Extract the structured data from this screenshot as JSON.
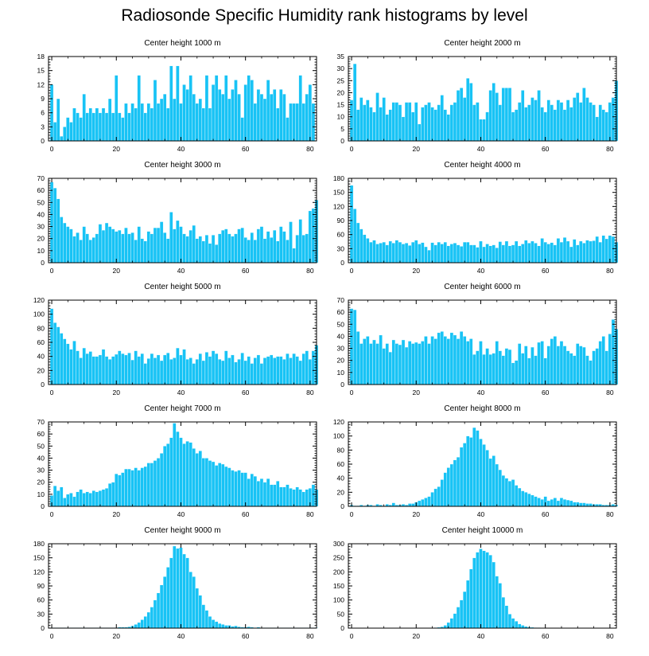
{
  "title": "Radiosonde Specific Humidity rank histograms by level",
  "colors": {
    "bar": "#18c3f5",
    "bar_edge": "#ffffff",
    "axis": "#000000"
  },
  "chart_data": [
    {
      "type": "bar",
      "title": "Center height 1000 m",
      "ylim": [
        0,
        18
      ],
      "yticks": [
        0,
        3,
        6,
        9,
        12,
        15,
        18
      ],
      "xlim": [
        -1,
        82
      ],
      "xticks": [
        0,
        20,
        40,
        60,
        80
      ],
      "values": [
        12,
        4,
        9,
        1,
        3,
        5,
        4,
        7,
        6,
        5,
        10,
        6,
        7,
        6,
        7,
        6,
        7,
        6,
        9,
        6,
        14,
        6,
        5,
        8,
        6,
        8,
        7,
        14,
        8,
        6,
        8,
        7,
        13,
        8,
        9,
        10,
        7,
        16,
        9,
        16,
        8,
        12,
        11,
        14,
        10,
        8,
        9,
        7,
        14,
        7,
        12,
        14,
        11,
        10,
        14,
        9,
        11,
        13,
        10,
        5,
        12,
        14,
        13,
        8,
        11,
        10,
        9,
        13,
        10,
        11,
        7,
        11,
        10,
        5,
        8,
        8,
        8,
        14,
        8,
        10,
        12,
        8
      ]
    },
    {
      "type": "bar",
      "title": "Center height 2000 m",
      "ylim": [
        0,
        35
      ],
      "yticks": [
        0,
        5,
        10,
        15,
        20,
        25,
        30,
        35
      ],
      "xlim": [
        -1,
        82
      ],
      "xticks": [
        0,
        20,
        40,
        60,
        80
      ],
      "values": [
        17,
        32,
        13,
        18,
        15,
        17,
        14,
        12,
        20,
        14,
        18,
        11,
        13,
        16,
        16,
        15,
        10,
        16,
        16,
        12,
        16,
        7,
        14,
        15,
        16,
        14,
        13,
        15,
        19,
        13,
        11,
        15,
        16,
        21,
        22,
        18,
        26,
        24,
        15,
        16,
        9,
        9,
        12,
        21,
        24,
        20,
        15,
        22,
        22,
        22,
        12,
        13,
        16,
        21,
        14,
        15,
        18,
        17,
        21,
        14,
        12,
        17,
        15,
        13,
        17,
        16,
        13,
        17,
        14,
        18,
        20,
        16,
        22,
        18,
        16,
        15,
        10,
        15,
        13,
        12,
        16,
        18,
        25
      ]
    },
    {
      "type": "bar",
      "title": "Center height 3000 m",
      "ylim": [
        0,
        70
      ],
      "yticks": [
        0,
        10,
        20,
        30,
        40,
        50,
        60,
        70
      ],
      "xlim": [
        -1,
        82
      ],
      "xticks": [
        0,
        20,
        40,
        60,
        80
      ],
      "values": [
        67,
        62,
        53,
        38,
        33,
        30,
        28,
        22,
        25,
        19,
        30,
        24,
        19,
        21,
        24,
        32,
        27,
        33,
        30,
        28,
        26,
        27,
        24,
        29,
        24,
        25,
        19,
        30,
        20,
        18,
        26,
        24,
        29,
        29,
        34,
        25,
        20,
        42,
        28,
        35,
        30,
        24,
        22,
        27,
        31,
        20,
        22,
        18,
        23,
        16,
        23,
        15,
        24,
        27,
        28,
        24,
        22,
        24,
        28,
        29,
        21,
        19,
        25,
        19,
        28,
        30,
        20,
        26,
        21,
        27,
        18,
        30,
        26,
        19,
        34,
        12,
        23,
        36,
        23,
        24,
        43,
        45,
        52
      ]
    },
    {
      "type": "bar",
      "title": "Center height 4000 m",
      "ylim": [
        0,
        180
      ],
      "yticks": [
        0,
        30,
        60,
        90,
        120,
        150,
        180
      ],
      "xlim": [
        -1,
        82
      ],
      "xticks": [
        0,
        20,
        40,
        60,
        80
      ],
      "values": [
        165,
        115,
        85,
        72,
        60,
        52,
        44,
        48,
        40,
        42,
        44,
        38,
        46,
        42,
        48,
        44,
        40,
        42,
        37,
        44,
        48,
        40,
        43,
        34,
        27,
        43,
        38,
        44,
        40,
        44,
        36,
        40,
        42,
        38,
        35,
        44,
        44,
        38,
        38,
        33,
        46,
        34,
        40,
        36,
        38,
        32,
        45,
        38,
        46,
        36,
        38,
        46,
        36,
        40,
        48,
        42,
        46,
        42,
        36,
        52,
        44,
        40,
        43,
        38,
        52,
        44,
        54,
        46,
        34,
        50,
        38,
        46,
        42,
        48,
        46,
        47,
        56,
        44,
        58,
        51,
        58,
        56,
        44
      ]
    },
    {
      "type": "bar",
      "title": "Center height 5000 m",
      "ylim": [
        0,
        120
      ],
      "yticks": [
        0,
        20,
        40,
        60,
        80,
        100,
        120
      ],
      "xlim": [
        -1,
        82
      ],
      "xticks": [
        0,
        20,
        40,
        60,
        80
      ],
      "values": [
        108,
        88,
        82,
        73,
        65,
        58,
        50,
        62,
        48,
        38,
        52,
        44,
        47,
        40,
        40,
        42,
        50,
        40,
        36,
        40,
        43,
        48,
        44,
        42,
        45,
        35,
        48,
        40,
        44,
        30,
        37,
        44,
        38,
        42,
        34,
        42,
        45,
        36,
        38,
        52,
        42,
        50,
        36,
        38,
        30,
        36,
        44,
        34,
        46,
        40,
        48,
        44,
        36,
        34,
        48,
        38,
        42,
        32,
        36,
        45,
        34,
        40,
        30,
        38,
        42,
        30,
        38,
        40,
        42,
        38,
        40,
        40,
        36,
        44,
        38,
        44,
        40,
        34,
        44,
        48,
        36,
        48,
        56
      ]
    },
    {
      "type": "bar",
      "title": "Center height 6000 m",
      "ylim": [
        0,
        70
      ],
      "yticks": [
        0,
        10,
        20,
        30,
        40,
        50,
        60,
        70
      ],
      "xlim": [
        -1,
        82
      ],
      "xticks": [
        0,
        20,
        40,
        60,
        80
      ],
      "values": [
        63,
        62,
        44,
        34,
        38,
        40,
        34,
        37,
        34,
        41,
        30,
        34,
        27,
        37,
        34,
        33,
        37,
        31,
        36,
        34,
        35,
        34,
        36,
        40,
        34,
        40,
        38,
        43,
        44,
        40,
        38,
        43,
        41,
        38,
        44,
        40,
        36,
        38,
        25,
        28,
        36,
        25,
        30,
        25,
        26,
        36,
        28,
        24,
        30,
        29,
        18,
        20,
        34,
        26,
        32,
        22,
        31,
        24,
        35,
        36,
        22,
        32,
        38,
        40,
        32,
        36,
        32,
        28,
        26,
        24,
        34,
        32,
        31,
        24,
        20,
        28,
        30,
        36,
        40,
        28,
        42,
        54,
        46
      ]
    },
    {
      "type": "bar",
      "title": "Center height 7000 m",
      "ylim": [
        0,
        70
      ],
      "yticks": [
        0,
        10,
        20,
        30,
        40,
        50,
        60,
        70
      ],
      "xlim": [
        -1,
        82
      ],
      "xticks": [
        0,
        20,
        40,
        60,
        80
      ],
      "values": [
        9,
        17,
        13,
        16,
        7,
        10,
        11,
        8,
        12,
        14,
        11,
        12,
        11,
        13,
        12,
        13,
        14,
        15,
        19,
        20,
        27,
        26,
        28,
        31,
        31,
        30,
        32,
        30,
        32,
        33,
        36,
        36,
        38,
        40,
        44,
        50,
        52,
        57,
        69,
        62,
        57,
        52,
        54,
        53,
        48,
        44,
        46,
        40,
        40,
        38,
        37,
        34,
        36,
        35,
        33,
        32,
        30,
        29,
        30,
        28,
        28,
        23,
        27,
        25,
        21,
        23,
        20,
        23,
        18,
        18,
        21,
        16,
        16,
        18,
        15,
        14,
        16,
        14,
        12,
        14,
        15,
        18,
        14
      ]
    },
    {
      "type": "bar",
      "title": "Center height 8000 m",
      "ylim": [
        0,
        120
      ],
      "yticks": [
        0,
        20,
        40,
        60,
        80,
        100,
        120
      ],
      "xlim": [
        -1,
        82
      ],
      "xticks": [
        0,
        20,
        40,
        60,
        80
      ],
      "values": [
        2,
        1,
        1,
        2,
        1,
        2,
        2,
        1,
        3,
        2,
        1,
        3,
        2,
        5,
        2,
        2,
        3,
        2,
        4,
        4,
        6,
        8,
        10,
        12,
        14,
        20,
        25,
        28,
        38,
        48,
        55,
        60,
        66,
        70,
        84,
        90,
        100,
        98,
        112,
        108,
        96,
        88,
        80,
        68,
        72,
        60,
        52,
        44,
        40,
        36,
        38,
        30,
        26,
        22,
        20,
        18,
        16,
        14,
        12,
        10,
        14,
        8,
        10,
        12,
        8,
        12,
        10,
        9,
        8,
        6,
        6,
        5,
        5,
        4,
        4,
        3,
        3,
        3,
        2,
        2,
        2,
        3,
        2
      ]
    },
    {
      "type": "bar",
      "title": "Center height 9000 m",
      "ylim": [
        0,
        180
      ],
      "yticks": [
        0,
        30,
        60,
        90,
        120,
        150,
        180
      ],
      "xlim": [
        -1,
        82
      ],
      "xticks": [
        0,
        20,
        40,
        60,
        80
      ],
      "values": [
        1,
        1,
        1,
        1,
        1,
        1,
        1,
        1,
        1,
        1,
        1,
        1,
        1,
        1,
        1,
        1,
        1,
        1,
        1,
        1,
        1,
        2,
        2,
        2,
        3,
        5,
        8,
        12,
        18,
        25,
        34,
        45,
        60,
        75,
        92,
        110,
        130,
        150,
        175,
        170,
        172,
        158,
        150,
        120,
        110,
        85,
        70,
        50,
        38,
        25,
        18,
        14,
        10,
        8,
        6,
        6,
        4,
        5,
        3,
        2,
        2,
        3,
        2,
        1,
        2,
        1,
        1,
        1,
        1,
        1,
        1,
        1,
        1,
        1,
        1,
        1,
        1,
        1,
        1,
        1,
        1,
        1,
        1
      ]
    },
    {
      "type": "bar",
      "title": "Center height 10000 m",
      "ylim": [
        0,
        300
      ],
      "yticks": [
        0,
        50,
        100,
        150,
        200,
        250,
        300
      ],
      "xlim": [
        -1,
        82
      ],
      "xticks": [
        0,
        20,
        40,
        60,
        80
      ],
      "values": [
        1,
        1,
        1,
        1,
        1,
        1,
        1,
        1,
        1,
        1,
        1,
        1,
        1,
        1,
        1,
        1,
        1,
        1,
        1,
        1,
        1,
        1,
        1,
        1,
        1,
        1,
        2,
        3,
        5,
        10,
        20,
        35,
        52,
        75,
        100,
        130,
        170,
        210,
        250,
        270,
        282,
        275,
        270,
        260,
        235,
        185,
        160,
        110,
        80,
        50,
        35,
        25,
        15,
        10,
        6,
        4,
        3,
        2,
        2,
        1,
        1,
        1,
        1,
        1,
        1,
        1,
        1,
        1,
        1,
        1,
        1,
        1,
        1,
        1,
        1,
        1,
        1,
        1,
        1,
        1,
        1,
        1,
        1
      ]
    }
  ]
}
